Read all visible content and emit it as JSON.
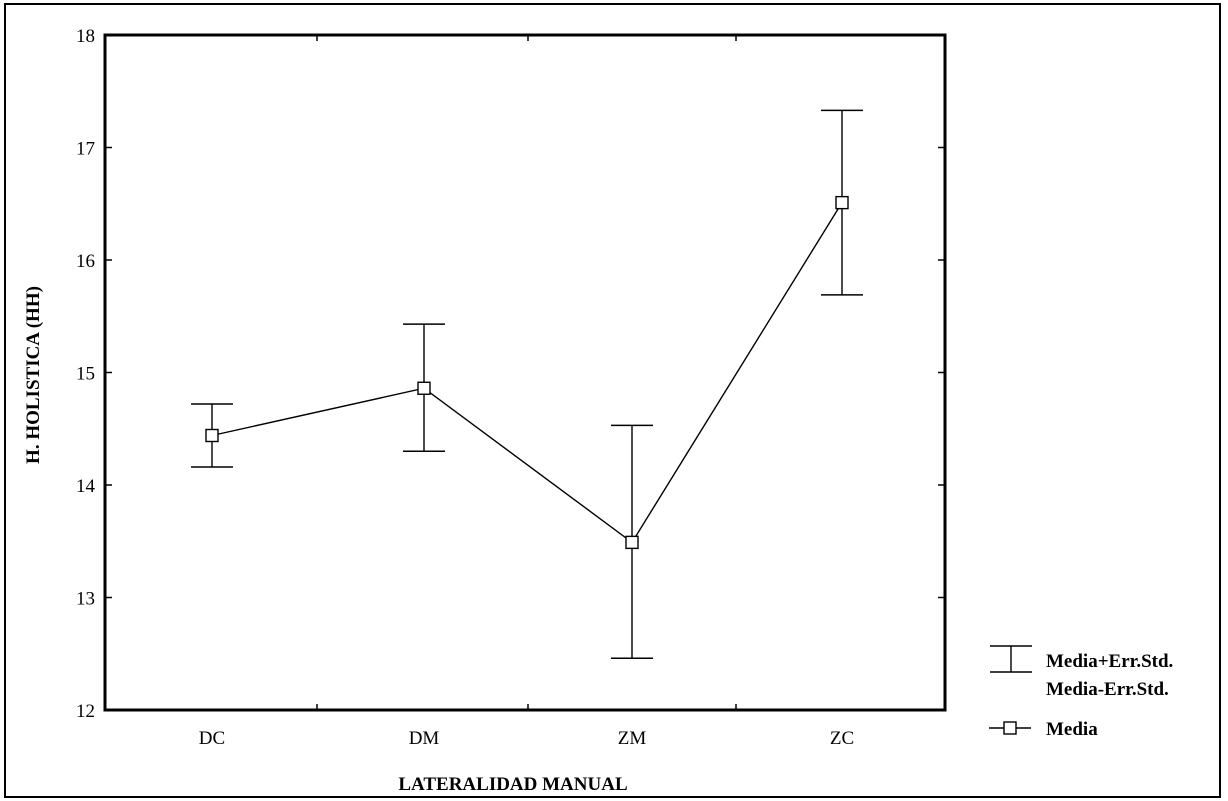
{
  "chart_data": {
    "type": "line",
    "categories": [
      "DC",
      "DM",
      "ZM",
      "ZC"
    ],
    "series": [
      {
        "name": "Media",
        "values": [
          14.44,
          14.86,
          13.49,
          16.51
        ],
        "upper": [
          14.72,
          15.43,
          14.53,
          17.33
        ],
        "lower": [
          14.16,
          14.3,
          12.46,
          15.69
        ]
      }
    ],
    "title": "",
    "xlabel": "LATERALIDAD MANUAL",
    "ylabel": "H. HOLISTICA (HH)",
    "ylim": [
      12,
      18
    ],
    "yticks": [
      "12",
      "13",
      "14",
      "15",
      "16",
      "17",
      "18"
    ],
    "grid": false,
    "legend_position": "bottom-right",
    "legend": {
      "error_label_upper": "Media+Err.Std.",
      "error_label_lower": "Media-Err.Std.",
      "mean_label": "Media"
    }
  }
}
